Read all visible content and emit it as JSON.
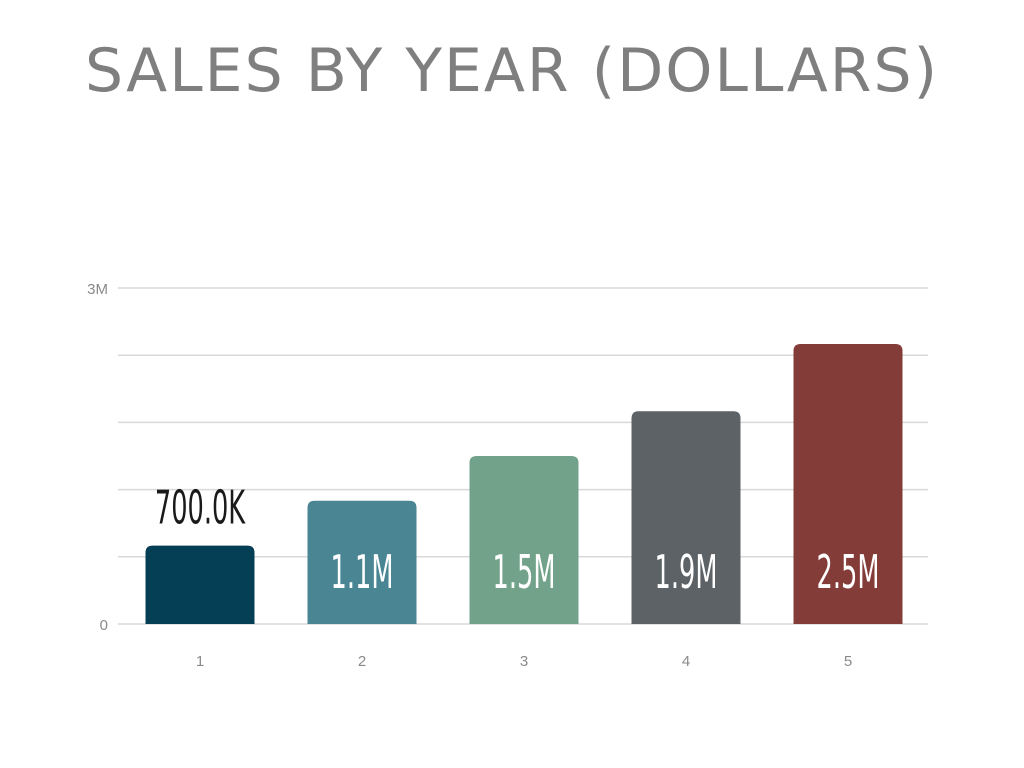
{
  "chart_data": {
    "type": "bar",
    "title": "SALES BY YEAR (DOLLARS)",
    "xlabel": "",
    "ylabel": "",
    "categories": [
      "1",
      "2",
      "3",
      "4",
      "5"
    ],
    "values": [
      700000,
      1100000,
      1500000,
      1900000,
      2500000
    ],
    "data_labels": [
      "700.0K",
      "1.1M",
      "1.5M",
      "1.9M",
      "2.5M"
    ],
    "ylim": [
      0,
      3000000
    ],
    "y_tick_labels": [
      "0",
      "3M"
    ],
    "gridlines": true,
    "legend": "none",
    "bar_colors": [
      "#053f55",
      "#4a8594",
      "#72a38a",
      "#5c6265",
      "#843c38"
    ],
    "label_colors": [
      "#1a1a1a",
      "#ffffff",
      "#ffffff",
      "#ffffff",
      "#ffffff"
    ]
  }
}
